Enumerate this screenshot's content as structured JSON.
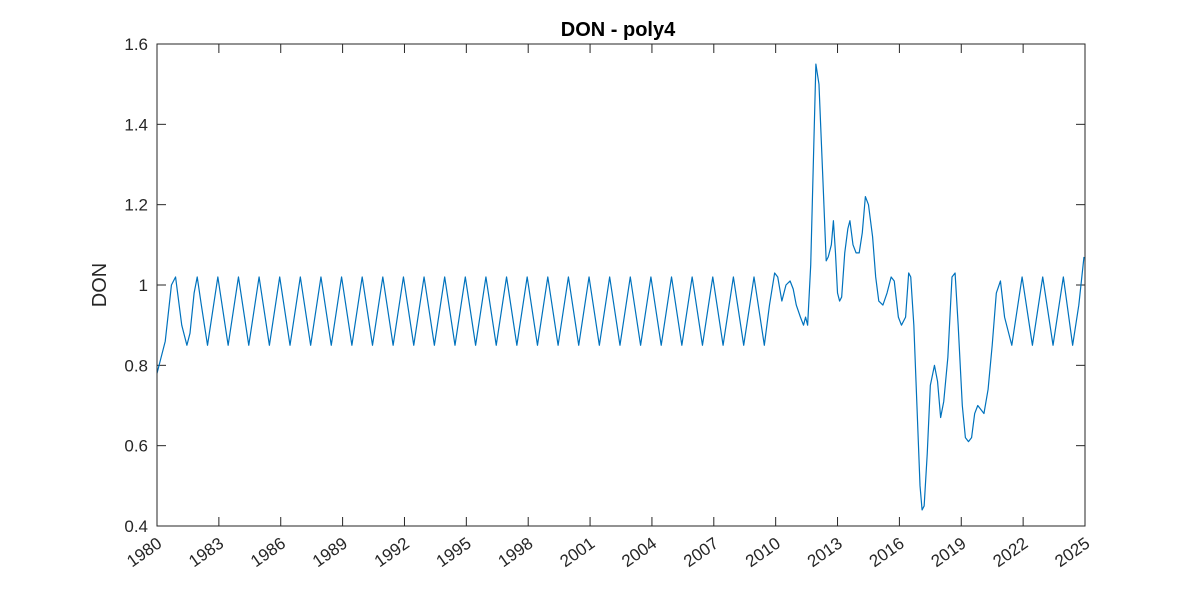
{
  "chart_data": {
    "type": "line",
    "title": "DON - poly4",
    "xlabel": "",
    "ylabel": "DON",
    "xlim": [
      1980,
      2025
    ],
    "ylim": [
      0.4,
      1.6
    ],
    "x_ticks": [
      "1980",
      "1983",
      "1986",
      "1989",
      "1992",
      "1995",
      "1998",
      "2001",
      "2004",
      "2007",
      "2010",
      "2013",
      "2016",
      "2019",
      "2022",
      "2025"
    ],
    "y_ticks": [
      "0.4",
      "0.6",
      "0.8",
      "1",
      "1.2",
      "1.4",
      "1.6"
    ],
    "grid": false,
    "line_color": "#0072BD",
    "series": [
      {
        "points": [
          [
            1980.0,
            0.78
          ],
          [
            1980.4,
            0.86
          ],
          [
            1980.7,
            1.0
          ],
          [
            1980.9,
            1.02
          ],
          [
            1981.0,
            0.98
          ],
          [
            1981.2,
            0.9
          ],
          [
            1981.45,
            0.85
          ],
          [
            1981.6,
            0.88
          ],
          [
            1981.8,
            0.98
          ],
          [
            1981.95,
            1.02
          ],
          [
            1982.15,
            0.95
          ],
          [
            1982.45,
            0.85
          ],
          [
            1982.95,
            1.02
          ],
          [
            1983.45,
            0.85
          ],
          [
            1983.95,
            1.02
          ],
          [
            1984.45,
            0.85
          ],
          [
            1984.95,
            1.02
          ],
          [
            1985.45,
            0.85
          ],
          [
            1985.95,
            1.02
          ],
          [
            1986.45,
            0.85
          ],
          [
            1986.95,
            1.02
          ],
          [
            1987.45,
            0.85
          ],
          [
            1987.95,
            1.02
          ],
          [
            1988.45,
            0.85
          ],
          [
            1988.95,
            1.02
          ],
          [
            1989.45,
            0.85
          ],
          [
            1989.95,
            1.02
          ],
          [
            1990.45,
            0.85
          ],
          [
            1990.95,
            1.02
          ],
          [
            1991.45,
            0.85
          ],
          [
            1991.95,
            1.02
          ],
          [
            1992.45,
            0.85
          ],
          [
            1992.95,
            1.02
          ],
          [
            1993.45,
            0.85
          ],
          [
            1993.95,
            1.02
          ],
          [
            1994.45,
            0.85
          ],
          [
            1994.95,
            1.02
          ],
          [
            1995.45,
            0.85
          ],
          [
            1995.95,
            1.02
          ],
          [
            1996.45,
            0.85
          ],
          [
            1996.95,
            1.02
          ],
          [
            1997.45,
            0.85
          ],
          [
            1997.95,
            1.02
          ],
          [
            1998.45,
            0.85
          ],
          [
            1998.95,
            1.02
          ],
          [
            1999.45,
            0.85
          ],
          [
            1999.95,
            1.02
          ],
          [
            2000.45,
            0.85
          ],
          [
            2000.95,
            1.02
          ],
          [
            2001.45,
            0.85
          ],
          [
            2001.95,
            1.02
          ],
          [
            2002.45,
            0.85
          ],
          [
            2002.95,
            1.02
          ],
          [
            2003.45,
            0.85
          ],
          [
            2003.95,
            1.02
          ],
          [
            2004.45,
            0.85
          ],
          [
            2004.95,
            1.02
          ],
          [
            2005.45,
            0.85
          ],
          [
            2005.95,
            1.02
          ],
          [
            2006.45,
            0.85
          ],
          [
            2006.95,
            1.02
          ],
          [
            2007.45,
            0.85
          ],
          [
            2007.95,
            1.02
          ],
          [
            2008.45,
            0.85
          ],
          [
            2008.95,
            1.02
          ],
          [
            2009.45,
            0.85
          ],
          [
            2009.7,
            0.95
          ],
          [
            2009.95,
            1.03
          ],
          [
            2010.1,
            1.02
          ],
          [
            2010.3,
            0.96
          ],
          [
            2010.5,
            1.0
          ],
          [
            2010.7,
            1.01
          ],
          [
            2010.85,
            0.99
          ],
          [
            2011.0,
            0.95
          ],
          [
            2011.2,
            0.92
          ],
          [
            2011.35,
            0.9
          ],
          [
            2011.45,
            0.92
          ],
          [
            2011.55,
            0.9
          ],
          [
            2011.7,
            1.05
          ],
          [
            2011.85,
            1.35
          ],
          [
            2011.95,
            1.55
          ],
          [
            2012.1,
            1.5
          ],
          [
            2012.3,
            1.25
          ],
          [
            2012.45,
            1.06
          ],
          [
            2012.55,
            1.07
          ],
          [
            2012.7,
            1.1
          ],
          [
            2012.8,
            1.16
          ],
          [
            2012.9,
            1.08
          ],
          [
            2013.0,
            0.98
          ],
          [
            2013.1,
            0.96
          ],
          [
            2013.2,
            0.97
          ],
          [
            2013.35,
            1.08
          ],
          [
            2013.5,
            1.14
          ],
          [
            2013.6,
            1.16
          ],
          [
            2013.75,
            1.1
          ],
          [
            2013.9,
            1.08
          ],
          [
            2014.05,
            1.08
          ],
          [
            2014.2,
            1.13
          ],
          [
            2014.35,
            1.22
          ],
          [
            2014.5,
            1.2
          ],
          [
            2014.7,
            1.12
          ],
          [
            2014.85,
            1.02
          ],
          [
            2015.0,
            0.96
          ],
          [
            2015.2,
            0.95
          ],
          [
            2015.4,
            0.98
          ],
          [
            2015.6,
            1.02
          ],
          [
            2015.75,
            1.01
          ],
          [
            2015.95,
            0.92
          ],
          [
            2016.1,
            0.9
          ],
          [
            2016.3,
            0.92
          ],
          [
            2016.45,
            1.03
          ],
          [
            2016.55,
            1.02
          ],
          [
            2016.7,
            0.9
          ],
          [
            2016.85,
            0.7
          ],
          [
            2017.0,
            0.5
          ],
          [
            2017.1,
            0.44
          ],
          [
            2017.2,
            0.45
          ],
          [
            2017.35,
            0.58
          ],
          [
            2017.5,
            0.75
          ],
          [
            2017.7,
            0.8
          ],
          [
            2017.85,
            0.76
          ],
          [
            2018.0,
            0.67
          ],
          [
            2018.15,
            0.71
          ],
          [
            2018.35,
            0.82
          ],
          [
            2018.55,
            1.02
          ],
          [
            2018.7,
            1.03
          ],
          [
            2018.85,
            0.9
          ],
          [
            2019.05,
            0.7
          ],
          [
            2019.2,
            0.62
          ],
          [
            2019.35,
            0.61
          ],
          [
            2019.5,
            0.62
          ],
          [
            2019.65,
            0.68
          ],
          [
            2019.8,
            0.7
          ],
          [
            2019.95,
            0.69
          ],
          [
            2020.1,
            0.68
          ],
          [
            2020.3,
            0.74
          ],
          [
            2020.5,
            0.85
          ],
          [
            2020.7,
            0.98
          ],
          [
            2020.9,
            1.01
          ],
          [
            2021.1,
            0.92
          ],
          [
            2021.45,
            0.85
          ],
          [
            2021.95,
            1.02
          ],
          [
            2022.45,
            0.85
          ],
          [
            2022.95,
            1.02
          ],
          [
            2023.45,
            0.85
          ],
          [
            2023.95,
            1.02
          ],
          [
            2024.4,
            0.85
          ],
          [
            2024.7,
            0.95
          ],
          [
            2024.95,
            1.07
          ]
        ]
      }
    ]
  }
}
